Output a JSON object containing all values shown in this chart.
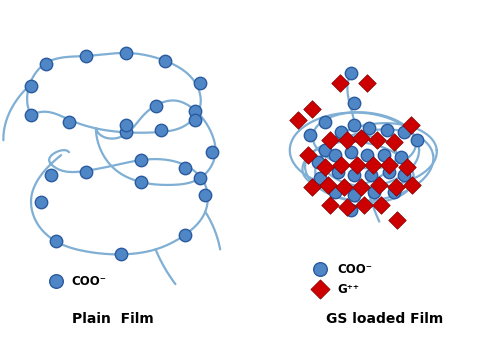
{
  "background_color": "#ffffff",
  "circle_color": "#4f86c6",
  "circle_edge_color": "#2a5a9f",
  "diamond_color": "#cc0000",
  "diamond_edge_color": "#880000",
  "line_color": "#7fafd4",
  "line_width": 1.6,
  "circle_size": 80,
  "diamond_size": 80,
  "plain_label": "Plain  Film",
  "gs_label": "GS loaded Film",
  "coo_label": "COO⁻",
  "g_label": "G⁺⁺",
  "title_fontsize": 10,
  "legend_fontsize": 8.5
}
